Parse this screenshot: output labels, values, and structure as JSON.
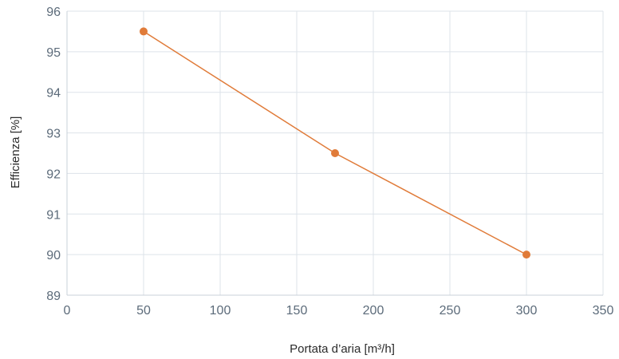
{
  "chart_data": {
    "type": "line",
    "title": "",
    "xlabel": "Portata d’aria [m³/h]",
    "ylabel": "Efficienza [%]",
    "xlim": [
      0,
      350
    ],
    "ylim": [
      89,
      96
    ],
    "xticks": [
      0,
      50,
      100,
      150,
      200,
      250,
      300,
      350
    ],
    "yticks": [
      89,
      90,
      91,
      92,
      93,
      94,
      95,
      96
    ],
    "grid": true,
    "series": [
      {
        "x": [
          50,
          175,
          300
        ],
        "y": [
          95.5,
          92.5,
          90.0
        ],
        "color": "#e07b39",
        "markers": true
      }
    ]
  }
}
